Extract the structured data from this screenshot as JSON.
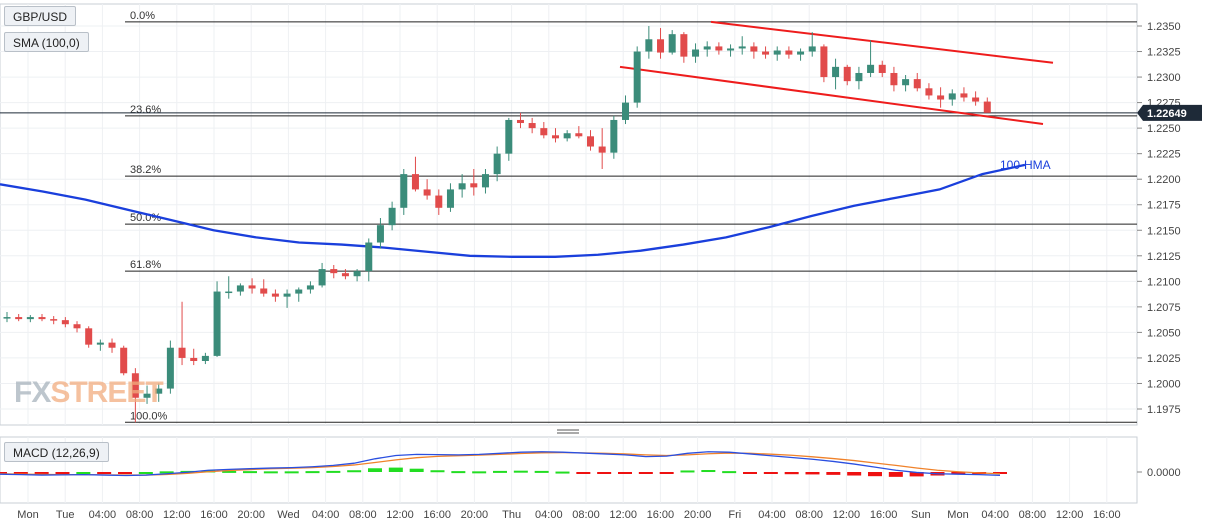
{
  "symbol": "GBP/USD",
  "sma_label": "SMA (100,0)",
  "macd_label": "MACD (12,26,9)",
  "watermark": {
    "text_a": "FX",
    "text_b": "STREET"
  },
  "hma_label": "100-HMA",
  "price_badge": "1.22649",
  "colors": {
    "bull": "#3b8c7a",
    "bear": "#e14b4b",
    "hma": "#1a3fdc",
    "channel": "#ee1c1c",
    "macd_line": "#2a4fe0",
    "signal_line": "#f0822a",
    "hist_pos": "#22dd22",
    "hist_neg": "#ee1111"
  },
  "chart_data": {
    "type": "candlestick",
    "y_ticks": [
      "1.2350",
      "1.2325",
      "1.2300",
      "1.2275",
      "1.2250",
      "1.2225",
      "1.2200",
      "1.2175",
      "1.2150",
      "1.2125",
      "1.2100",
      "1.2075",
      "1.2050",
      "1.2025",
      "1.2000",
      "1.1975"
    ],
    "y_range": [
      1.1955,
      1.2362
    ],
    "x_labels": [
      "Mon",
      "Tue",
      "04:00",
      "08:00",
      "12:00",
      "16:00",
      "20:00",
      "Wed",
      "04:00",
      "08:00",
      "12:00",
      "16:00",
      "20:00",
      "Thu",
      "04:00",
      "08:00",
      "12:00",
      "16:00",
      "20:00",
      "Fri",
      "04:00",
      "08:00",
      "12:00",
      "16:00",
      "Sun",
      "Mon",
      "04:00",
      "08:00",
      "12:00",
      "16:00"
    ],
    "last_price": 1.22649,
    "fibonacci": [
      {
        "label": "0.0%",
        "price": 1.2354
      },
      {
        "label": "23.6%",
        "price": 1.2262
      },
      {
        "label": "38.2%",
        "price": 1.2203
      },
      {
        "label": "50.0%",
        "price": 1.2156
      },
      {
        "label": "61.8%",
        "price": 1.211
      },
      {
        "label": "100.0%",
        "price": 1.1962
      }
    ],
    "channel": {
      "upper": [
        [
          1.2354,
          1.2354
        ],
        [
          1.2314,
          1.2314
        ]
      ],
      "lower": [
        [
          1.231,
          1.231
        ],
        [
          1.2254,
          1.2254
        ]
      ]
    },
    "hma": [
      1.2195,
      1.2188,
      1.218,
      1.217,
      1.216,
      1.215,
      1.2143,
      1.2138,
      1.2136,
      1.2133,
      1.2129,
      1.2125,
      1.2124,
      1.2124,
      1.2126,
      1.213,
      1.2136,
      1.2143,
      1.2153,
      1.2164,
      1.2174,
      1.2182,
      1.219,
      1.2205,
      1.2214
    ],
    "candles": [
      [
        1.2065,
        1.207,
        1.206,
        1.2065
      ],
      [
        1.2065,
        1.2068,
        1.2061,
        1.2063
      ],
      [
        1.2063,
        1.2067,
        1.206,
        1.2065
      ],
      [
        1.2065,
        1.2068,
        1.2061,
        1.2063
      ],
      [
        1.2063,
        1.2066,
        1.2058,
        1.2062
      ],
      [
        1.2062,
        1.2065,
        1.2055,
        1.2058
      ],
      [
        1.2058,
        1.2061,
        1.205,
        1.2054
      ],
      [
        1.2054,
        1.2056,
        1.2035,
        1.2038
      ],
      [
        1.2038,
        1.2043,
        1.2032,
        1.204
      ],
      [
        1.204,
        1.2044,
        1.203,
        1.2035
      ],
      [
        1.2035,
        1.2037,
        1.2008,
        1.201
      ],
      [
        1.201,
        1.2015,
        1.1962,
        1.1986
      ],
      [
        1.1986,
        1.1998,
        1.198,
        1.199
      ],
      [
        1.199,
        1.2,
        1.1982,
        1.1995
      ],
      [
        1.1995,
        1.2042,
        1.199,
        1.2035
      ],
      [
        1.2035,
        1.208,
        1.2018,
        1.2025
      ],
      [
        1.2025,
        1.2034,
        1.2018,
        1.2022
      ],
      [
        1.2022,
        1.203,
        1.2019,
        1.2027
      ],
      [
        1.2027,
        1.21,
        1.2026,
        1.209
      ],
      [
        1.209,
        1.2105,
        1.2083,
        1.209
      ],
      [
        1.209,
        1.2098,
        1.2086,
        1.2096
      ],
      [
        1.2096,
        1.2103,
        1.2088,
        1.2093
      ],
      [
        1.2093,
        1.2102,
        1.2085,
        1.2088
      ],
      [
        1.2088,
        1.2092,
        1.208,
        1.2085
      ],
      [
        1.2085,
        1.2092,
        1.2074,
        1.2088
      ],
      [
        1.2088,
        1.2094,
        1.208,
        1.2092
      ],
      [
        1.2092,
        1.21,
        1.2088,
        1.2096
      ],
      [
        1.2096,
        1.2118,
        1.2094,
        1.2112
      ],
      [
        1.2112,
        1.2116,
        1.2103,
        1.2108
      ],
      [
        1.2108,
        1.2112,
        1.2102,
        1.2105
      ],
      [
        1.2105,
        1.2112,
        1.21,
        1.211
      ],
      [
        1.211,
        1.2142,
        1.21,
        1.2138
      ],
      [
        1.2138,
        1.2162,
        1.2132,
        1.2155
      ],
      [
        1.2155,
        1.2178,
        1.215,
        1.2172
      ],
      [
        1.2172,
        1.221,
        1.2165,
        1.2205
      ],
      [
        1.2205,
        1.2222,
        1.2188,
        1.219
      ],
      [
        1.219,
        1.22,
        1.218,
        1.2184
      ],
      [
        1.2184,
        1.219,
        1.2165,
        1.2172
      ],
      [
        1.2172,
        1.2196,
        1.2168,
        1.219
      ],
      [
        1.219,
        1.2205,
        1.2182,
        1.2196
      ],
      [
        1.2196,
        1.221,
        1.2184,
        1.2192
      ],
      [
        1.2192,
        1.221,
        1.2186,
        1.2205
      ],
      [
        1.2205,
        1.2232,
        1.2198,
        1.2225
      ],
      [
        1.2225,
        1.226,
        1.2218,
        1.2258
      ],
      [
        1.2258,
        1.2265,
        1.225,
        1.2255
      ],
      [
        1.2255,
        1.226,
        1.2245,
        1.225
      ],
      [
        1.225,
        1.2256,
        1.224,
        1.2243
      ],
      [
        1.2243,
        1.225,
        1.2236,
        1.224
      ],
      [
        1.224,
        1.2248,
        1.2237,
        1.2245
      ],
      [
        1.2245,
        1.2252,
        1.224,
        1.2242
      ],
      [
        1.2242,
        1.2248,
        1.2228,
        1.2232
      ],
      [
        1.2232,
        1.225,
        1.221,
        1.2226
      ],
      [
        1.2226,
        1.2262,
        1.222,
        1.2258
      ],
      [
        1.2258,
        1.2282,
        1.2254,
        1.2275
      ],
      [
        1.2275,
        1.233,
        1.227,
        1.2325
      ],
      [
        1.2325,
        1.235,
        1.2318,
        1.2337
      ],
      [
        1.2337,
        1.2348,
        1.2318,
        1.2324
      ],
      [
        1.2324,
        1.2346,
        1.2322,
        1.2342
      ],
      [
        1.2342,
        1.2344,
        1.2314,
        1.232
      ],
      [
        1.232,
        1.2333,
        1.2314,
        1.2327
      ],
      [
        1.2327,
        1.2335,
        1.232,
        1.233
      ],
      [
        1.233,
        1.2334,
        1.2322,
        1.2326
      ],
      [
        1.2326,
        1.2332,
        1.232,
        1.2328
      ],
      [
        1.2328,
        1.234,
        1.2322,
        1.233
      ],
      [
        1.233,
        1.2334,
        1.2318,
        1.2325
      ],
      [
        1.2325,
        1.233,
        1.2318,
        1.2322
      ],
      [
        1.2322,
        1.233,
        1.2316,
        1.2326
      ],
      [
        1.2326,
        1.233,
        1.2318,
        1.2322
      ],
      [
        1.2322,
        1.2328,
        1.2316,
        1.2325
      ],
      [
        1.2325,
        1.2344,
        1.232,
        1.233
      ],
      [
        1.233,
        1.2332,
        1.2295,
        1.23
      ],
      [
        1.23,
        1.2318,
        1.2288,
        1.231
      ],
      [
        1.231,
        1.2312,
        1.2292,
        1.2296
      ],
      [
        1.2296,
        1.231,
        1.2288,
        1.2304
      ],
      [
        1.2304,
        1.2336,
        1.23,
        1.2312
      ],
      [
        1.2312,
        1.2316,
        1.23,
        1.2304
      ],
      [
        1.2304,
        1.231,
        1.2286,
        1.2292
      ],
      [
        1.2292,
        1.2302,
        1.2286,
        1.2298
      ],
      [
        1.2298,
        1.2304,
        1.2286,
        1.2289
      ],
      [
        1.2289,
        1.2294,
        1.2278,
        1.2282
      ],
      [
        1.2282,
        1.229,
        1.227,
        1.2278
      ],
      [
        1.2278,
        1.2288,
        1.2272,
        1.2284
      ],
      [
        1.2284,
        1.229,
        1.2276,
        1.228
      ],
      [
        1.228,
        1.2286,
        1.2272,
        1.2276
      ],
      [
        1.2276,
        1.228,
        1.2268,
        1.2265
      ]
    ],
    "macd": {
      "y_ticks": [
        "0.0000"
      ],
      "macd_line": [
        -0.001,
        -0.0012,
        -0.0014,
        -0.0013,
        -0.0012,
        -0.0014,
        -0.0016,
        -0.0014,
        -0.0008,
        -0.0001,
        0.0008,
        0.0012,
        0.0015,
        0.0018,
        0.002,
        0.0024,
        0.003,
        0.004,
        0.006,
        0.0075,
        0.008,
        0.0079,
        0.0078,
        0.008,
        0.0085,
        0.009,
        0.0092,
        0.009,
        0.0086,
        0.0082,
        0.0078,
        0.007,
        0.0072,
        0.0085,
        0.0092,
        0.009,
        0.0082,
        0.0074,
        0.0066,
        0.0058,
        0.0048,
        0.0036,
        0.0022,
        0.0008,
        -0.0002,
        -0.0008,
        -0.001,
        -0.0012,
        -0.0015
      ],
      "signal_line": [
        -0.0008,
        -0.001,
        -0.0011,
        -0.0012,
        -0.0012,
        -0.0013,
        -0.0014,
        -0.0014,
        -0.0011,
        -0.0006,
        0.0001,
        0.0007,
        0.0011,
        0.0015,
        0.0017,
        0.002,
        0.0025,
        0.0032,
        0.0043,
        0.0055,
        0.0065,
        0.0071,
        0.0074,
        0.0077,
        0.008,
        0.0084,
        0.0087,
        0.0088,
        0.0087,
        0.0085,
        0.0082,
        0.0078,
        0.0075,
        0.0078,
        0.0083,
        0.0086,
        0.0085,
        0.0081,
        0.0076,
        0.0069,
        0.0061,
        0.0052,
        0.0041,
        0.003,
        0.0018,
        0.0008,
        0.0001,
        -0.0004,
        -0.0008
      ],
      "histogram": [
        -0.0002,
        -0.0002,
        -0.0003,
        -0.0001,
        0.0,
        -0.0001,
        -0.0002,
        0.0,
        0.0003,
        0.0005,
        0.0007,
        0.0005,
        0.0004,
        0.0003,
        0.0003,
        0.0004,
        0.0005,
        0.0008,
        0.0017,
        0.002,
        0.0015,
        0.0008,
        0.0004,
        0.0003,
        0.0005,
        0.0006,
        0.0005,
        0.0002,
        -0.0001,
        -0.0003,
        -0.0004,
        -0.0008,
        -0.0003,
        0.0007,
        0.0009,
        0.0004,
        -0.0003,
        -0.0007,
        -0.001,
        -0.0011,
        -0.0013,
        -0.0016,
        -0.0019,
        -0.0022,
        -0.002,
        -0.0016,
        -0.0011,
        -0.0008,
        -0.0007
      ]
    }
  }
}
